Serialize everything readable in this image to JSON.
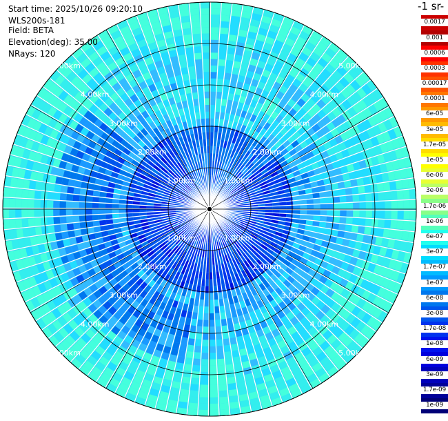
{
  "header": {
    "start_time": "Start time: 2025/10/26 09:20:10",
    "instrument": "WLS200s-181",
    "field": "Field: BETA",
    "elevation": "Elevation(deg): 35.00",
    "nrays": "NRays: 120"
  },
  "colorbar": {
    "title": "-1 sr-",
    "levels": [
      "0.0017",
      "0.001",
      "0.0006",
      "0.0003",
      "0.00017",
      "0.0001",
      "6e-05",
      "3e-05",
      "1.7e-05",
      "1e-05",
      "6e-06",
      "3e-06",
      "1.7e-06",
      "1e-06",
      "6e-07",
      "3e-07",
      "1.7e-07",
      "1e-07",
      "6e-08",
      "3e-08",
      "1.7e-08",
      "1e-08",
      "6e-09",
      "3e-09",
      "1.7e-09",
      "1e-09"
    ],
    "colors": [
      "#cc0000",
      "#b30000",
      "#ff0000",
      "#ff3300",
      "#ff5500",
      "#ff7700",
      "#ff9900",
      "#ffbb00",
      "#ffdd00",
      "#ffff00",
      "#e8ff33",
      "#bbff66",
      "#88ff88",
      "#55ffbb",
      "#22ffee",
      "#00ddff",
      "#00bbff",
      "#0099ff",
      "#0077ee",
      "#0055ee",
      "#0033ee",
      "#0011ee",
      "#0000dd",
      "#0000bb",
      "#000099",
      "#000077"
    ]
  },
  "chart_data": {
    "type": "heatmap",
    "ring_labels": [
      "1.00km",
      "2.00km",
      "3.00km",
      "4.00km",
      "5.00km"
    ],
    "ring_ranges_km": [
      1,
      2,
      3,
      4,
      5
    ],
    "range_max_km": 5.0,
    "n_rays": 120,
    "elevation_deg": 35.0,
    "field": "BETA",
    "scale": "log"
  }
}
